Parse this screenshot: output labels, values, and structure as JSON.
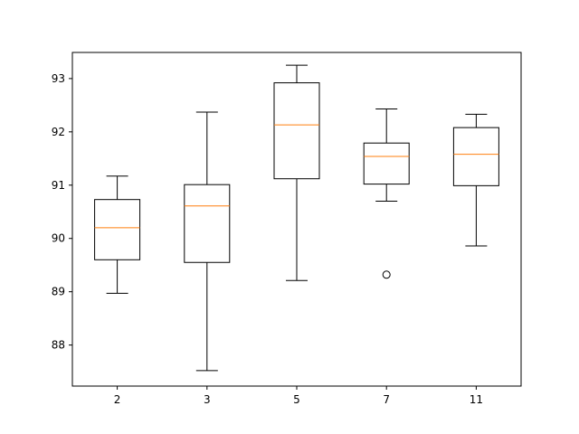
{
  "chart_data": {
    "type": "box",
    "title": "",
    "xlabel": "",
    "ylabel": "",
    "categories": [
      "2",
      "3",
      "5",
      "7",
      "11"
    ],
    "ylim": [
      87.23,
      93.49
    ],
    "yticks": [
      88,
      89,
      90,
      91,
      92,
      93
    ],
    "grid": false,
    "colors": {
      "box": "#000000",
      "median": "#ff7f0e",
      "background": "#ffffff"
    },
    "boxes": [
      {
        "category": "2",
        "whisker_low": 88.97,
        "q1": 89.6,
        "median": 90.2,
        "q3": 90.73,
        "whisker_high": 91.17,
        "outliers": []
      },
      {
        "category": "3",
        "whisker_low": 87.52,
        "q1": 89.55,
        "median": 90.61,
        "q3": 91.01,
        "whisker_high": 92.37,
        "outliers": []
      },
      {
        "category": "5",
        "whisker_low": 89.21,
        "q1": 91.12,
        "median": 92.13,
        "q3": 92.92,
        "whisker_high": 93.25,
        "outliers": []
      },
      {
        "category": "7",
        "whisker_low": 90.7,
        "q1": 91.02,
        "median": 91.54,
        "q3": 91.79,
        "whisker_high": 92.43,
        "outliers": [
          89.32
        ]
      },
      {
        "category": "11",
        "whisker_low": 89.86,
        "q1": 90.99,
        "median": 91.58,
        "q3": 92.08,
        "whisker_high": 92.33,
        "outliers": []
      }
    ]
  }
}
